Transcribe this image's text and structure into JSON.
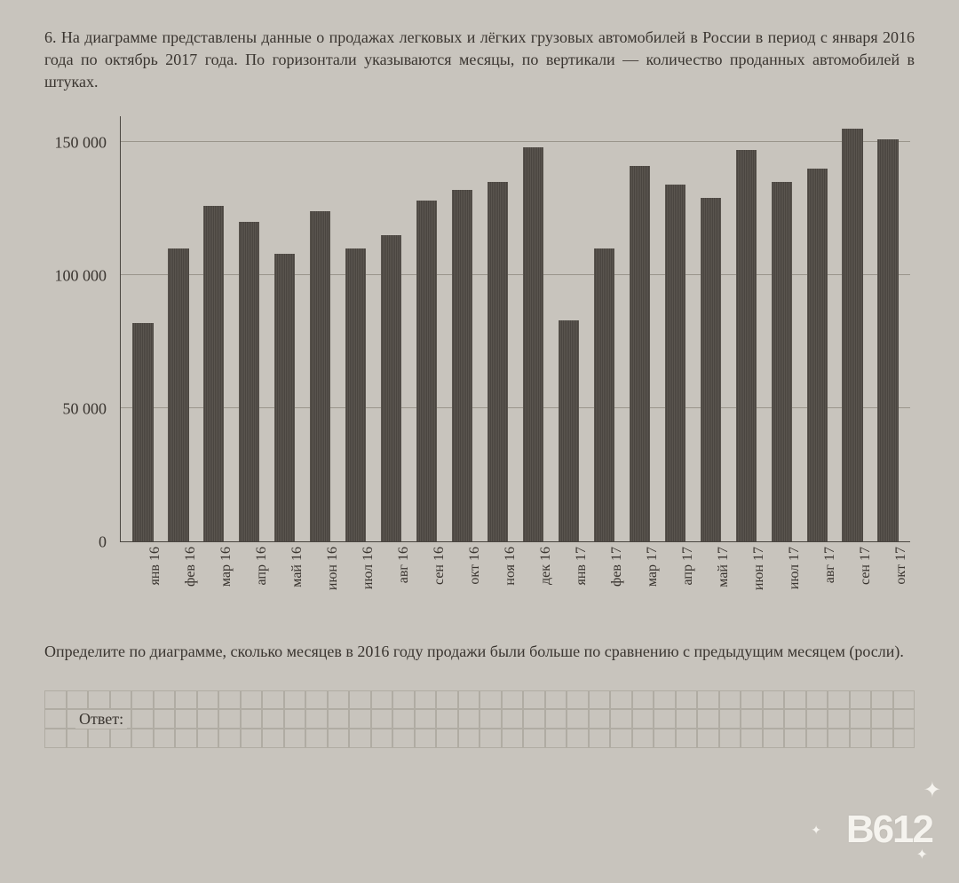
{
  "problem": {
    "number": "6.",
    "text": "На диаграмме представлены данные о продажах легковых и лёгких грузовых автомобилей в России в период с января 2016 года по октябрь 2017 года. По горизонтали указываются месяцы, по вертикали — количество проданных автомобилей в штуках."
  },
  "chart": {
    "type": "bar",
    "ymax": 160000,
    "ytick_step": 50000,
    "ytick_labels": [
      "0",
      "50 000",
      "100 000",
      "150 000"
    ],
    "ytick_values": [
      0,
      50000,
      100000,
      150000
    ],
    "grid_color": "#9a958b",
    "bar_color": "#55504a",
    "background_color": "#c8c4bd",
    "categories": [
      "янв 16",
      "фев 16",
      "мар 16",
      "апр 16",
      "май 16",
      "июн 16",
      "июл 16",
      "авг 16",
      "сен 16",
      "окт 16",
      "ноя 16",
      "дек 16",
      "янв 17",
      "фев 17",
      "мар 17",
      "апр 17",
      "май 17",
      "июн 17",
      "июл 17",
      "авг 17",
      "сен 17",
      "окт 17"
    ],
    "values": [
      82000,
      110000,
      126000,
      120000,
      108000,
      124000,
      110000,
      115000,
      128000,
      132000,
      135000,
      148000,
      83000,
      110000,
      141000,
      134000,
      129000,
      147000,
      135000,
      140000,
      155000,
      151000
    ],
    "label_fontsize": 18,
    "xlabel_fontsize": 16,
    "bar_width_ratio": 0.58
  },
  "question": "Определите по диаграмме, сколько месяцев в 2016 году продажи были больше по сравнению с предыдущим месяцем (росли).",
  "answer_label": "Ответ:",
  "watermark": "B612"
}
